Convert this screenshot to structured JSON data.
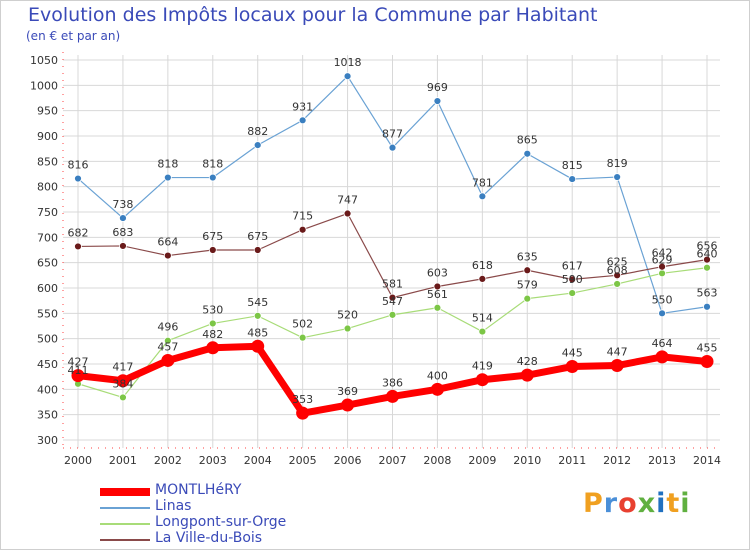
{
  "title": "Evolution des Impôts locaux pour la Commune par Habitant",
  "subtitle": "(en € et par an)",
  "logo": {
    "text": "Proxiti",
    "colors": [
      "#f0a020",
      "#4a8fd8",
      "#e84030",
      "#60b040",
      "#2070c0",
      "#f0a020",
      "#60b040"
    ]
  },
  "chart_data": {
    "type": "line",
    "title": "Evolution des Impôts locaux pour la Commune par Habitant",
    "subtitle": "(en € et par an)",
    "xlabel": "",
    "ylabel": "",
    "ylim": [
      300,
      1050
    ],
    "ytick_step": 50,
    "grid": true,
    "legend_position": "bottom-left",
    "categories": [
      "2000",
      "2001",
      "2002",
      "2003",
      "2004",
      "2005",
      "2006",
      "2007",
      "2008",
      "2009",
      "2010",
      "2011",
      "2012",
      "2013",
      "2014"
    ],
    "series": [
      {
        "name": "Linas",
        "color": "#6aa2d4",
        "marker": "#3a7fc0",
        "width": 1.2,
        "values": [
          816,
          738,
          818,
          818,
          882,
          931,
          1018,
          877,
          969,
          781,
          865,
          815,
          819,
          550,
          563
        ]
      },
      {
        "name": "Longpont-sur-Orge",
        "color": "#a8dc78",
        "marker": "#7cc646",
        "width": 1.2,
        "values": [
          411,
          384,
          496,
          530,
          545,
          502,
          520,
          547,
          561,
          514,
          579,
          590,
          608,
          629,
          640
        ]
      },
      {
        "name": "La Ville-du-Bois",
        "color": "#8a4a4a",
        "marker": "#6a1a1a",
        "width": 1.2,
        "values": [
          682,
          683,
          664,
          675,
          675,
          715,
          747,
          581,
          603,
          618,
          635,
          617,
          625,
          642,
          656
        ]
      },
      {
        "name": "MONTLHéRY",
        "color": "#ff0000",
        "marker": "#ff0000",
        "width": 7,
        "values": [
          427,
          417,
          457,
          482,
          485,
          353,
          369,
          386,
          400,
          419,
          428,
          445,
          447,
          464,
          455
        ]
      }
    ],
    "legend_order": [
      "MONTLHéRY",
      "Linas",
      "Longpont-sur-Orge",
      "La Ville-du-Bois"
    ]
  }
}
